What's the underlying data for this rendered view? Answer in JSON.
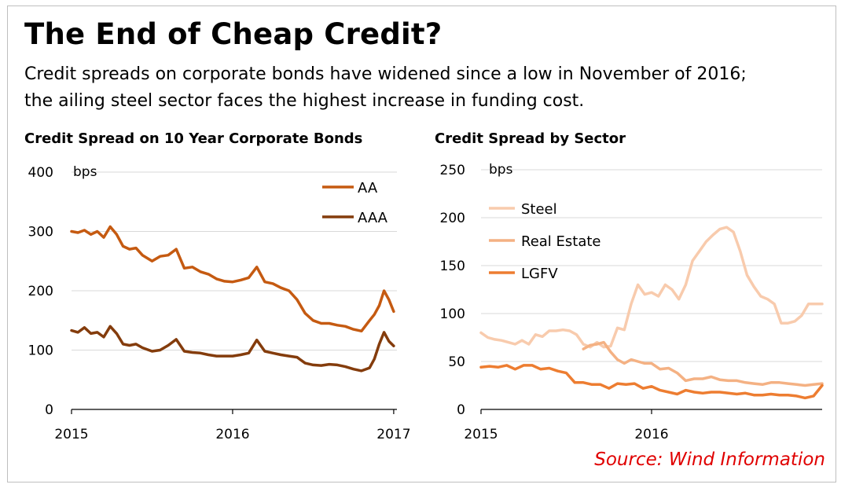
{
  "header": {
    "title": "The End of Cheap Credit?",
    "subtitle_line1": "Credit spreads on corporate bonds have widened since a low in November of 2016;",
    "subtitle_line2": "the ailing steel sector faces the highest increase in funding cost."
  },
  "source": "Source: Wind Information",
  "chart_data": [
    {
      "type": "line",
      "title": "Credit Spread on 10 Year Corporate Bonds",
      "ylabel": "bps",
      "xlabel": "",
      "ylim": [
        0,
        400
      ],
      "yticks": [
        0,
        100,
        200,
        300,
        400
      ],
      "xlim": [
        2015,
        2017.02
      ],
      "xticks": [
        2015,
        2016,
        2017
      ],
      "grid": "horizontal",
      "legend": "top-right",
      "series": [
        {
          "name": "AA",
          "color": "#c55a11",
          "x": [
            2015.0,
            2015.04,
            2015.08,
            2015.12,
            2015.16,
            2015.2,
            2015.24,
            2015.28,
            2015.32,
            2015.36,
            2015.4,
            2015.44,
            2015.5,
            2015.55,
            2015.6,
            2015.65,
            2015.7,
            2015.75,
            2015.8,
            2015.85,
            2015.9,
            2015.95,
            2016.0,
            2016.05,
            2016.1,
            2016.15,
            2016.2,
            2016.25,
            2016.3,
            2016.35,
            2016.4,
            2016.45,
            2016.5,
            2016.55,
            2016.6,
            2016.65,
            2016.7,
            2016.75,
            2016.8,
            2016.85,
            2016.88,
            2016.91,
            2016.94,
            2016.97,
            2017.0
          ],
          "values": [
            300,
            298,
            302,
            295,
            300,
            290,
            308,
            295,
            275,
            270,
            272,
            260,
            250,
            258,
            260,
            270,
            238,
            240,
            232,
            228,
            220,
            216,
            215,
            218,
            222,
            240,
            215,
            212,
            205,
            200,
            185,
            162,
            150,
            145,
            145,
            142,
            140,
            135,
            132,
            150,
            160,
            175,
            200,
            185,
            165
          ]
        },
        {
          "name": "AAA",
          "color": "#843c0c",
          "x": [
            2015.0,
            2015.04,
            2015.08,
            2015.12,
            2015.16,
            2015.2,
            2015.24,
            2015.28,
            2015.32,
            2015.36,
            2015.4,
            2015.44,
            2015.5,
            2015.55,
            2015.6,
            2015.65,
            2015.7,
            2015.75,
            2015.8,
            2015.85,
            2015.9,
            2015.95,
            2016.0,
            2016.05,
            2016.1,
            2016.15,
            2016.2,
            2016.25,
            2016.3,
            2016.35,
            2016.4,
            2016.45,
            2016.5,
            2016.55,
            2016.6,
            2016.65,
            2016.7,
            2016.75,
            2016.8,
            2016.85,
            2016.88,
            2016.91,
            2016.94,
            2016.97,
            2017.0
          ],
          "values": [
            133,
            130,
            138,
            128,
            130,
            122,
            140,
            128,
            110,
            108,
            110,
            104,
            98,
            100,
            108,
            118,
            98,
            96,
            95,
            92,
            90,
            90,
            90,
            92,
            95,
            117,
            98,
            95,
            92,
            90,
            88,
            78,
            75,
            74,
            76,
            75,
            72,
            68,
            65,
            70,
            85,
            110,
            130,
            115,
            107
          ]
        }
      ]
    },
    {
      "type": "line",
      "title": "Credit Spread by Sector",
      "ylabel": "bps",
      "xlabel": "",
      "ylim": [
        0,
        250
      ],
      "yticks": [
        0,
        50,
        100,
        150,
        200,
        250
      ],
      "xlim": [
        2015,
        2017
      ],
      "xticks": [
        2015,
        2016
      ],
      "grid": "horizontal",
      "legend": "top-left",
      "series": [
        {
          "name": "Steel",
          "color": "#f8cbad",
          "x": [
            2015.0,
            2015.04,
            2015.08,
            2015.12,
            2015.16,
            2015.2,
            2015.24,
            2015.28,
            2015.32,
            2015.36,
            2015.4,
            2015.44,
            2015.48,
            2015.52,
            2015.56,
            2015.6,
            2015.64,
            2015.68,
            2015.72,
            2015.76,
            2015.8,
            2015.84,
            2015.88,
            2015.92,
            2015.96,
            2016.0,
            2016.04,
            2016.08,
            2016.12,
            2016.16,
            2016.2,
            2016.24,
            2016.28,
            2016.32,
            2016.36,
            2016.4,
            2016.44,
            2016.48,
            2016.52,
            2016.56,
            2016.6,
            2016.64,
            2016.68,
            2016.72,
            2016.76,
            2016.8,
            2016.84,
            2016.88,
            2016.92,
            2016.96,
            2017.0
          ],
          "values": [
            80,
            75,
            73,
            72,
            70,
            68,
            72,
            68,
            78,
            76,
            82,
            82,
            83,
            82,
            78,
            68,
            65,
            70,
            65,
            66,
            85,
            83,
            110,
            130,
            120,
            122,
            118,
            130,
            125,
            115,
            130,
            155,
            165,
            175,
            182,
            188,
            190,
            185,
            165,
            140,
            128,
            118,
            115,
            110,
            90,
            90,
            92,
            98,
            110,
            110,
            110
          ]
        },
        {
          "name": "Real Estate",
          "color": "#f4b183",
          "x": [
            2015.6,
            2015.64,
            2015.68,
            2015.72,
            2015.76,
            2015.8,
            2015.84,
            2015.88,
            2015.92,
            2015.96,
            2016.0,
            2016.05,
            2016.1,
            2016.15,
            2016.2,
            2016.25,
            2016.3,
            2016.35,
            2016.4,
            2016.45,
            2016.5,
            2016.55,
            2016.6,
            2016.65,
            2016.7,
            2016.75,
            2016.8,
            2016.85,
            2016.9,
            2016.95,
            2017.0
          ],
          "values": [
            63,
            67,
            68,
            70,
            60,
            52,
            48,
            52,
            50,
            48,
            48,
            42,
            43,
            38,
            30,
            32,
            32,
            34,
            31,
            30,
            30,
            28,
            27,
            26,
            28,
            28,
            27,
            26,
            25,
            26,
            27
          ]
        },
        {
          "name": "LGFV",
          "color": "#ed7d31",
          "x": [
            2015.0,
            2015.05,
            2015.1,
            2015.15,
            2015.2,
            2015.25,
            2015.3,
            2015.35,
            2015.4,
            2015.45,
            2015.5,
            2015.55,
            2015.6,
            2015.65,
            2015.7,
            2015.75,
            2015.8,
            2015.85,
            2015.9,
            2015.95,
            2016.0,
            2016.05,
            2016.1,
            2016.15,
            2016.2,
            2016.25,
            2016.3,
            2016.35,
            2016.4,
            2016.45,
            2016.5,
            2016.55,
            2016.6,
            2016.65,
            2016.7,
            2016.75,
            2016.8,
            2016.85,
            2016.9,
            2016.95,
            2017.0
          ],
          "values": [
            44,
            45,
            44,
            46,
            42,
            46,
            46,
            42,
            43,
            40,
            38,
            28,
            28,
            26,
            26,
            22,
            27,
            26,
            27,
            22,
            24,
            20,
            18,
            16,
            20,
            18,
            17,
            18,
            18,
            17,
            16,
            17,
            15,
            15,
            16,
            15,
            15,
            14,
            12,
            14,
            25
          ]
        }
      ]
    }
  ]
}
